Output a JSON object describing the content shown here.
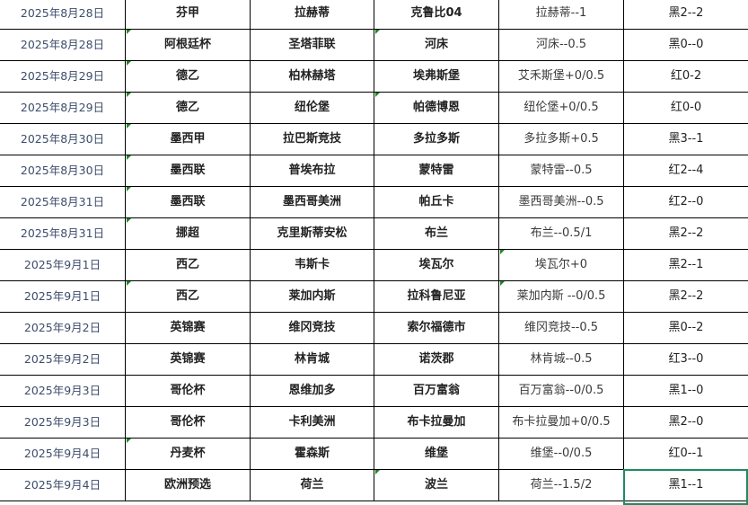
{
  "rows": [
    {
      "date": "2025年8月28日",
      "league": "芬甲",
      "home": "拉赫蒂",
      "away": "克鲁比04",
      "handicap": "拉赫蒂--1",
      "result": "黑2--2",
      "marks": []
    },
    {
      "date": "2025年8月28日",
      "league": "阿根廷杯",
      "home": "圣塔菲联",
      "away": "河床",
      "handicap": "河床--0.5",
      "result": "黑0--0",
      "marks": [
        1,
        3
      ]
    },
    {
      "date": "2025年8月29日",
      "league": "德乙",
      "home": "柏林赫塔",
      "away": "埃弗斯堡",
      "handicap": "艾禾斯堡+0/0.5",
      "result": "红0-2",
      "marks": [
        1
      ]
    },
    {
      "date": "2025年8月29日",
      "league": "德乙",
      "home": "纽伦堡",
      "away": "帕德博恩",
      "handicap": "纽伦堡+0/0.5",
      "result": "红0-0",
      "marks": [
        1,
        3
      ]
    },
    {
      "date": "2025年8月30日",
      "league": "墨西甲",
      "home": "拉巴斯竞技",
      "away": "多拉多斯",
      "handicap": "多拉多斯+0.5",
      "result": "黑3--1",
      "marks": [
        1
      ]
    },
    {
      "date": "2025年8月30日",
      "league": "墨西联",
      "home": "普埃布拉",
      "away": "蒙特雷",
      "handicap": "蒙特雷--0.5",
      "result": "红2--4",
      "marks": [
        1
      ]
    },
    {
      "date": "2025年8月31日",
      "league": "墨西联",
      "home": "墨西哥美洲",
      "away": "帕丘卡",
      "handicap": "墨西哥美洲--0.5",
      "result": "红2--0",
      "marks": [
        1
      ]
    },
    {
      "date": "2025年8月31日",
      "league": "挪超",
      "home": "克里斯蒂安松",
      "away": "布兰",
      "handicap": "布兰--0.5/1",
      "result": "黑2--2",
      "marks": [
        1
      ]
    },
    {
      "date": "2025年9月1日",
      "league": "西乙",
      "home": "韦斯卡",
      "away": "埃瓦尔",
      "handicap": "埃瓦尔+0",
      "result": "黑2--1",
      "marks": [
        4
      ]
    },
    {
      "date": "2025年9月1日",
      "league": "西乙",
      "home": "莱加内斯",
      "away": "拉科鲁尼亚",
      "handicap": "莱加内斯 --0/0.5",
      "result": "黑2--2",
      "marks": [
        1,
        4
      ]
    },
    {
      "date": "2025年9月2日",
      "league": "英锦赛",
      "home": "维冈竞技",
      "away": "索尔福德市",
      "handicap": "维冈竞技--0.5",
      "result": "黑0--2",
      "marks": []
    },
    {
      "date": "2025年9月2日",
      "league": "英锦赛",
      "home": "林肯城",
      "away": "诺茨郡",
      "handicap": "林肯城--0.5",
      "result": "红3--0",
      "marks": []
    },
    {
      "date": "2025年9月3日",
      "league": "哥伦杯",
      "home": "恩维加多",
      "away": "百万富翁",
      "handicap": "百万富翁--0/0.5",
      "result": "黑1--0",
      "marks": []
    },
    {
      "date": "2025年9月3日",
      "league": "哥伦杯",
      "home": "卡利美洲",
      "away": "布卡拉曼加",
      "handicap": "布卡拉曼加+0/0.5",
      "result": "黑2--0",
      "marks": []
    },
    {
      "date": "2025年9月4日",
      "league": "丹麦杯",
      "home": "霍森斯",
      "away": "维堡",
      "handicap": "维堡--0/0.5",
      "result": "红0--1",
      "marks": [
        1
      ]
    },
    {
      "date": "2025年9月4日",
      "league": "欧洲预选",
      "home": "荷兰",
      "away": "波兰",
      "handicap": "荷兰--1.5/2",
      "result": "黑1--1",
      "marks": [
        3
      ]
    }
  ],
  "colors": {
    "selection": "#1d8c5e",
    "comment_marker": "#1a8a1a"
  }
}
